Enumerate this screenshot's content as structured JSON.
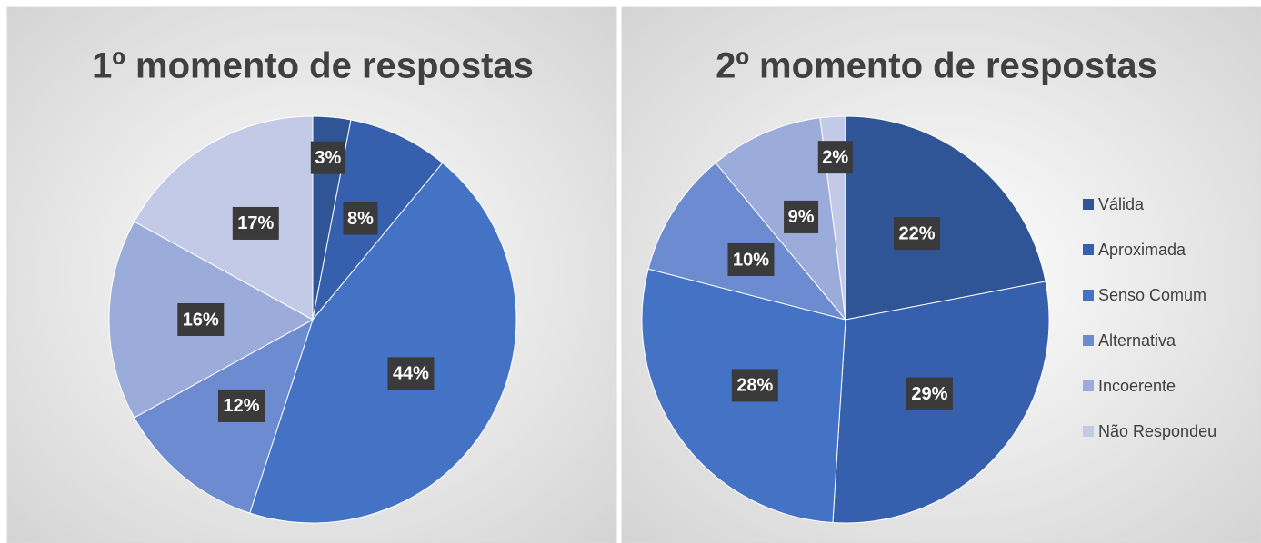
{
  "chart_data": [
    {
      "type": "pie",
      "title": "1º momento de respostas",
      "categories": [
        "Válida",
        "Aproximada",
        "Senso Comum",
        "Alternativa",
        "Incoerente",
        "Não Respondeu"
      ],
      "values": [
        3,
        8,
        44,
        12,
        16,
        17
      ],
      "value_labels": [
        "3%",
        "8%",
        "44%",
        "12%",
        "16%",
        "17%"
      ],
      "colors": [
        "#2f5597",
        "#3660ad",
        "#4472c4",
        "#6d8bd0",
        "#9babda",
        "#c2cae8"
      ]
    },
    {
      "type": "pie",
      "title": "2º momento de respostas",
      "categories": [
        "Válida",
        "Aproximada",
        "Senso Comum",
        "Alternativa",
        "Incoerente",
        "Não Respondeu"
      ],
      "values": [
        22,
        29,
        28,
        10,
        9,
        2
      ],
      "value_labels": [
        "22%",
        "29%",
        "28%",
        "10%",
        "9%",
        "2%"
      ],
      "colors": [
        "#2f5597",
        "#3660ad",
        "#4472c4",
        "#6d8bd0",
        "#9babda",
        "#c2cae8"
      ],
      "legend": "right"
    }
  ]
}
